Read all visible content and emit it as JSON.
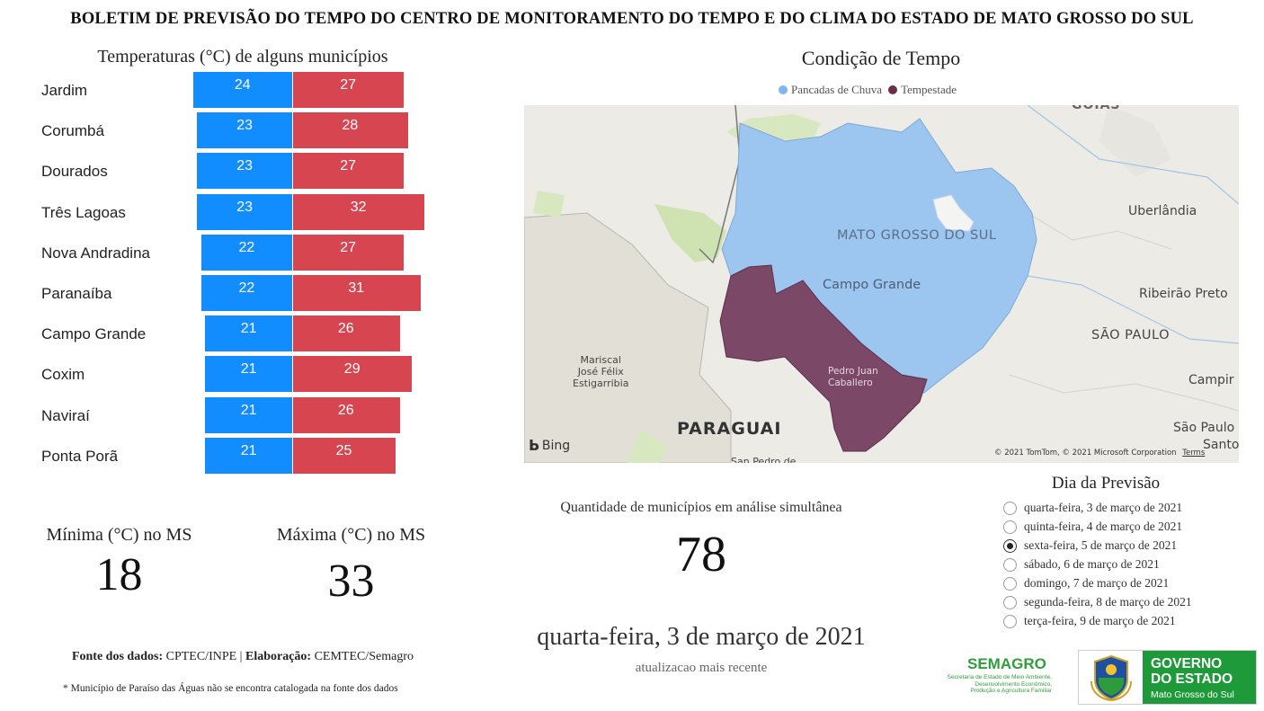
{
  "header": {
    "title": "BOLETIM DE PREVISÃO DO TEMPO DO CENTRO DE MONITORAMENTO DO TEMPO E DO CLIMA DO ESTADO DE MATO GROSSO DO SUL"
  },
  "temperatures": {
    "title": "Temperaturas (°C) de alguns municípios",
    "colors": {
      "min": "#118DFF",
      "max": "#D64550"
    },
    "rows": [
      {
        "city": "Jardim",
        "min": 24,
        "max": 27
      },
      {
        "city": "Corumbá",
        "min": 23,
        "max": 28
      },
      {
        "city": "Dourados",
        "min": 23,
        "max": 27
      },
      {
        "city": "Três Lagoas",
        "min": 23,
        "max": 32
      },
      {
        "city": "Nova Andradina",
        "min": 22,
        "max": 27
      },
      {
        "city": "Paranaíba",
        "min": 22,
        "max": 31
      },
      {
        "city": "Campo Grande",
        "min": 21,
        "max": 26
      },
      {
        "city": "Coxim",
        "min": 21,
        "max": 29
      },
      {
        "city": "Naviraí",
        "min": 21,
        "max": 26
      },
      {
        "city": "Ponta Porã",
        "min": 21,
        "max": 25
      }
    ]
  },
  "kpis": {
    "min_title": "Mínima (°C) no MS",
    "min_value": "18",
    "max_title": "Máxima (°C) no MS",
    "max_value": "33"
  },
  "source": {
    "fonte_label": "Fonte dos dados:",
    "fonte_value": " CPTEC/INPE | ",
    "elab_label": "Elaboração:",
    "elab_value": " CEMTEC/Semagro",
    "footnote": "* Município de Paraíso das Águas não se encontra catalogada na fonte dos dados"
  },
  "map": {
    "title": "Condição de Tempo",
    "legend": [
      {
        "label": "Pancadas de Chuva",
        "color": "#7EB6F2"
      },
      {
        "label": "Tempestade",
        "color": "#6B2C4E"
      }
    ],
    "labels": {
      "goias": "GOIÁS",
      "uberlandia": "Uberlândia",
      "ms": "MATO GROSSO DO SUL",
      "campo_grande": "Campo Grande",
      "ribeirao": "Ribeirão Preto",
      "sao_paulo_state": "SÃO PAULO",
      "mariscal": "Mariscal\nJosé Félix\nEstigarribia",
      "pedro_juan": "Pedro Juan\nCaballero",
      "campinas": "Campir",
      "sao_paulo_city": "São Paulo",
      "santos": "Santo",
      "paraguai": "PARAGUAI",
      "san_pedro": "San Pedro de",
      "bing": "Bing",
      "copyright": "© 2021 TomTom, © 2021 Microsoft Corporation",
      "terms": "Terms"
    }
  },
  "count": {
    "title": "Quantidade de municípios em análise simultânea",
    "value": "78"
  },
  "update": {
    "date": "quarta-feira, 3 de março de 2021",
    "label": "atualizacao mais recente"
  },
  "forecast_day": {
    "title": "Dia da Previsão",
    "options": [
      {
        "label": "quarta-feira, 3 de março de 2021",
        "checked": false
      },
      {
        "label": "quinta-feira, 4 de março de 2021",
        "checked": false
      },
      {
        "label": "sexta-feira, 5 de março de 2021",
        "checked": true
      },
      {
        "label": "sábado, 6 de março de 2021",
        "checked": false
      },
      {
        "label": "domingo, 7 de março de 2021",
        "checked": false
      },
      {
        "label": "segunda-feira, 8 de março de 2021",
        "checked": false
      },
      {
        "label": "terça-feira, 9 de março de 2021",
        "checked": false
      }
    ]
  },
  "logos": {
    "semagro_name": "SEMAGRO",
    "semagro_desc": "Secretaria de Estado de Meio Ambiente,\nDesenvolvimento Econômico,\nProdução e Agricultura Familiar",
    "gov_line1": "GOVERNO",
    "gov_line2": "DO ESTADO",
    "gov_line3": "Mato Grosso do Sul"
  }
}
